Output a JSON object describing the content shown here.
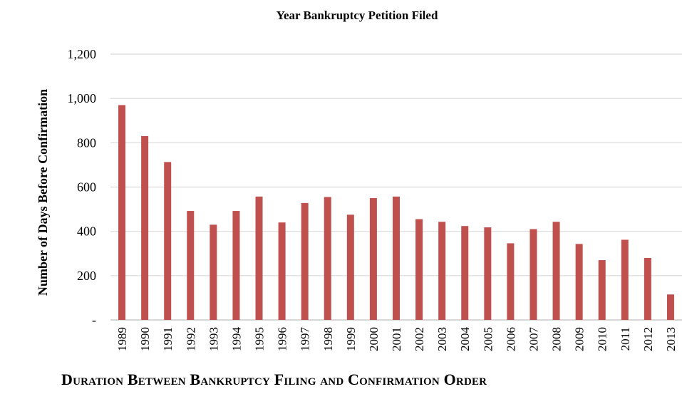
{
  "chart_data": {
    "type": "bar",
    "title": "Year Bankruptcy Petition Filed",
    "caption": "Duration Between Bankruptcy Filing and Confirmation Order",
    "xlabel": "",
    "ylabel": "Number of Days Before Confirmation",
    "ylim": [
      0,
      1200
    ],
    "yticks": [
      0,
      200,
      400,
      600,
      800,
      1000,
      1200
    ],
    "ytick_labels": [
      "-",
      "200",
      "400",
      "600",
      "800",
      "1,000",
      "1,200"
    ],
    "grid": true,
    "bar_color": "#c0504d",
    "categories": [
      "1989",
      "1990",
      "1991",
      "1992",
      "1993",
      "1994",
      "1995",
      "1996",
      "1997",
      "1998",
      "1999",
      "2000",
      "2001",
      "2002",
      "2003",
      "2004",
      "2005",
      "2006",
      "2007",
      "2008",
      "2009",
      "2010",
      "2011",
      "2012",
      "2013"
    ],
    "values": [
      970,
      830,
      713,
      492,
      430,
      492,
      557,
      440,
      528,
      555,
      475,
      550,
      557,
      455,
      443,
      424,
      418,
      346,
      410,
      443,
      343,
      270,
      362,
      280,
      115
    ]
  }
}
